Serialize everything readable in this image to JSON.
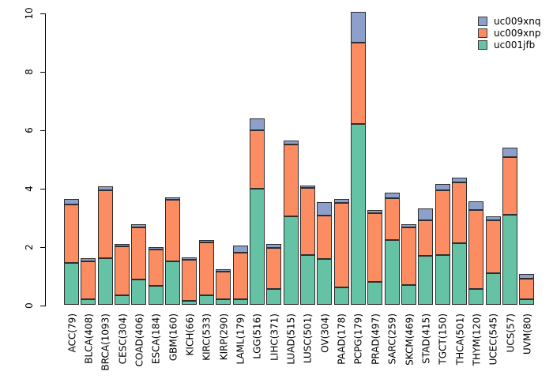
{
  "chart_data": {
    "type": "bar",
    "stacked": true,
    "title": "",
    "xlabel": "",
    "ylabel": "",
    "grid": false,
    "ylim": [
      0,
      10
    ],
    "yticks": [
      "0",
      "2",
      "4",
      "6",
      "8",
      "10"
    ],
    "legend_position": "top-right",
    "categories": [
      "ACC(79)",
      "BLCA(408)",
      "BRCA(1093)",
      "CESC(304)",
      "COAD(406)",
      "ESCA(184)",
      "GBM(160)",
      "KICH(66)",
      "KIRC(533)",
      "KIRP(290)",
      "LAML(179)",
      "LGG(516)",
      "LIHC(371)",
      "LUAD(515)",
      "LUSC(501)",
      "OV(304)",
      "PAAD(178)",
      "PCPG(179)",
      "PRAD(497)",
      "SARC(259)",
      "SKCM(469)",
      "STAD(415)",
      "TGCT(150)",
      "THCA(501)",
      "THYM(120)",
      "UCEC(545)",
      "UCS(57)",
      "UVM(80)"
    ],
    "series": [
      {
        "name": "uc001jfb",
        "color": "#66C2A5",
        "values": [
          1.45,
          0.2,
          1.6,
          0.33,
          0.87,
          0.65,
          1.5,
          0.15,
          0.35,
          0.2,
          0.2,
          4.0,
          0.55,
          3.05,
          1.73,
          1.58,
          0.62,
          6.2,
          0.8,
          2.24,
          0.7,
          1.69,
          1.73,
          2.12,
          0.55,
          1.1,
          3.1,
          0.2
        ]
      },
      {
        "name": "uc009xnp",
        "color": "#FC8D62",
        "values": [
          2.0,
          1.3,
          2.35,
          1.68,
          1.79,
          1.26,
          2.11,
          1.41,
          1.81,
          0.95,
          1.6,
          2.0,
          1.41,
          2.46,
          2.28,
          1.5,
          2.88,
          2.8,
          2.36,
          1.44,
          1.97,
          1.21,
          2.2,
          2.09,
          2.7,
          1.8,
          1.98,
          0.72
        ]
      },
      {
        "name": "uc009xnq",
        "color": "#8DA0CB",
        "values": [
          0.18,
          0.12,
          0.11,
          0.09,
          0.11,
          0.09,
          0.09,
          0.08,
          0.08,
          0.08,
          0.23,
          0.41,
          0.13,
          0.13,
          0.08,
          0.44,
          0.15,
          1.05,
          0.11,
          0.18,
          0.1,
          0.41,
          0.22,
          0.15,
          0.3,
          0.15,
          0.32,
          0.14
        ]
      }
    ],
    "legend": [
      {
        "label": "uc009xnq",
        "color": "#8DA0CB"
      },
      {
        "label": "uc009xnp",
        "color": "#FC8D62"
      },
      {
        "label": "uc001jfb",
        "color": "#66C2A5"
      }
    ]
  }
}
